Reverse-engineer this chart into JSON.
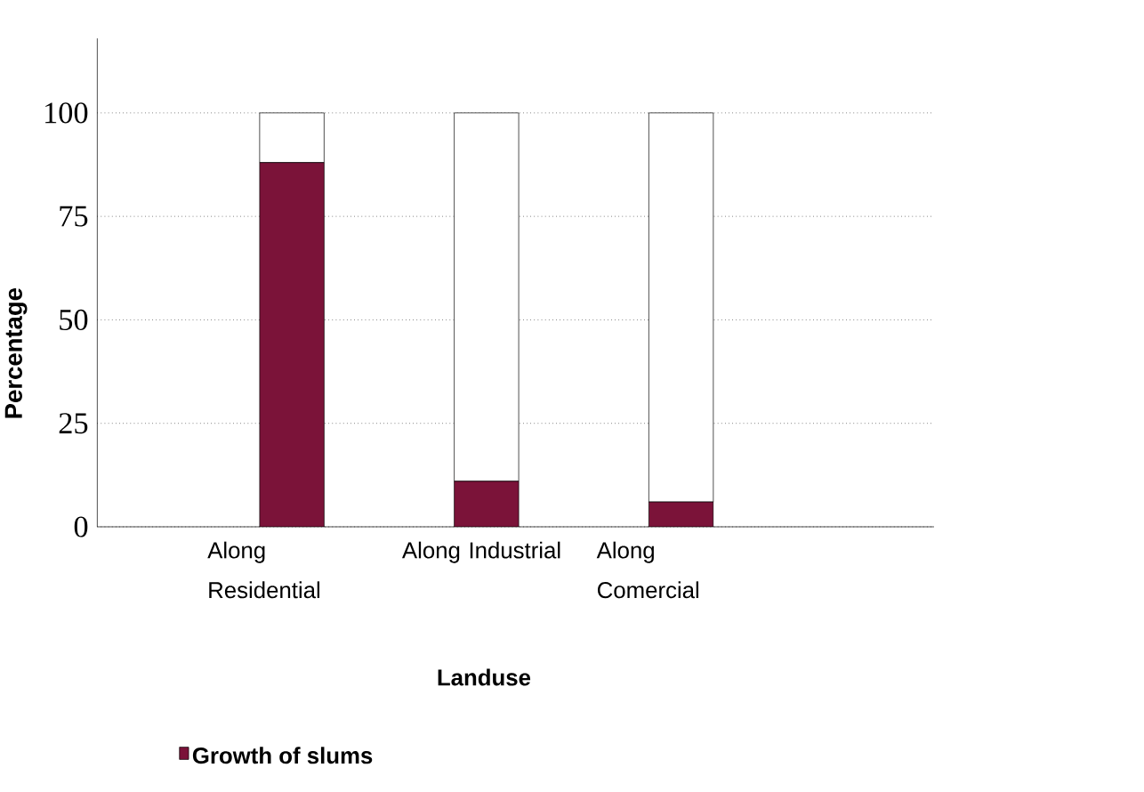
{
  "chart_data": {
    "type": "bar",
    "stacked": true,
    "categories": [
      "Along Residential",
      "Along Industrial",
      "Along Comercial"
    ],
    "series": [
      {
        "name": "Growth of slums",
        "color": "#7b1339",
        "values": [
          88,
          11,
          6
        ]
      },
      {
        "color": "#ffffff",
        "values": [
          12,
          89,
          94
        ]
      }
    ],
    "xlabel": "Landuse",
    "ylabel": "Percentage",
    "ylim": [
      0,
      118
    ],
    "yticks": [
      0,
      25,
      50,
      75,
      100
    ],
    "grid": "y",
    "legend": "bottom"
  }
}
